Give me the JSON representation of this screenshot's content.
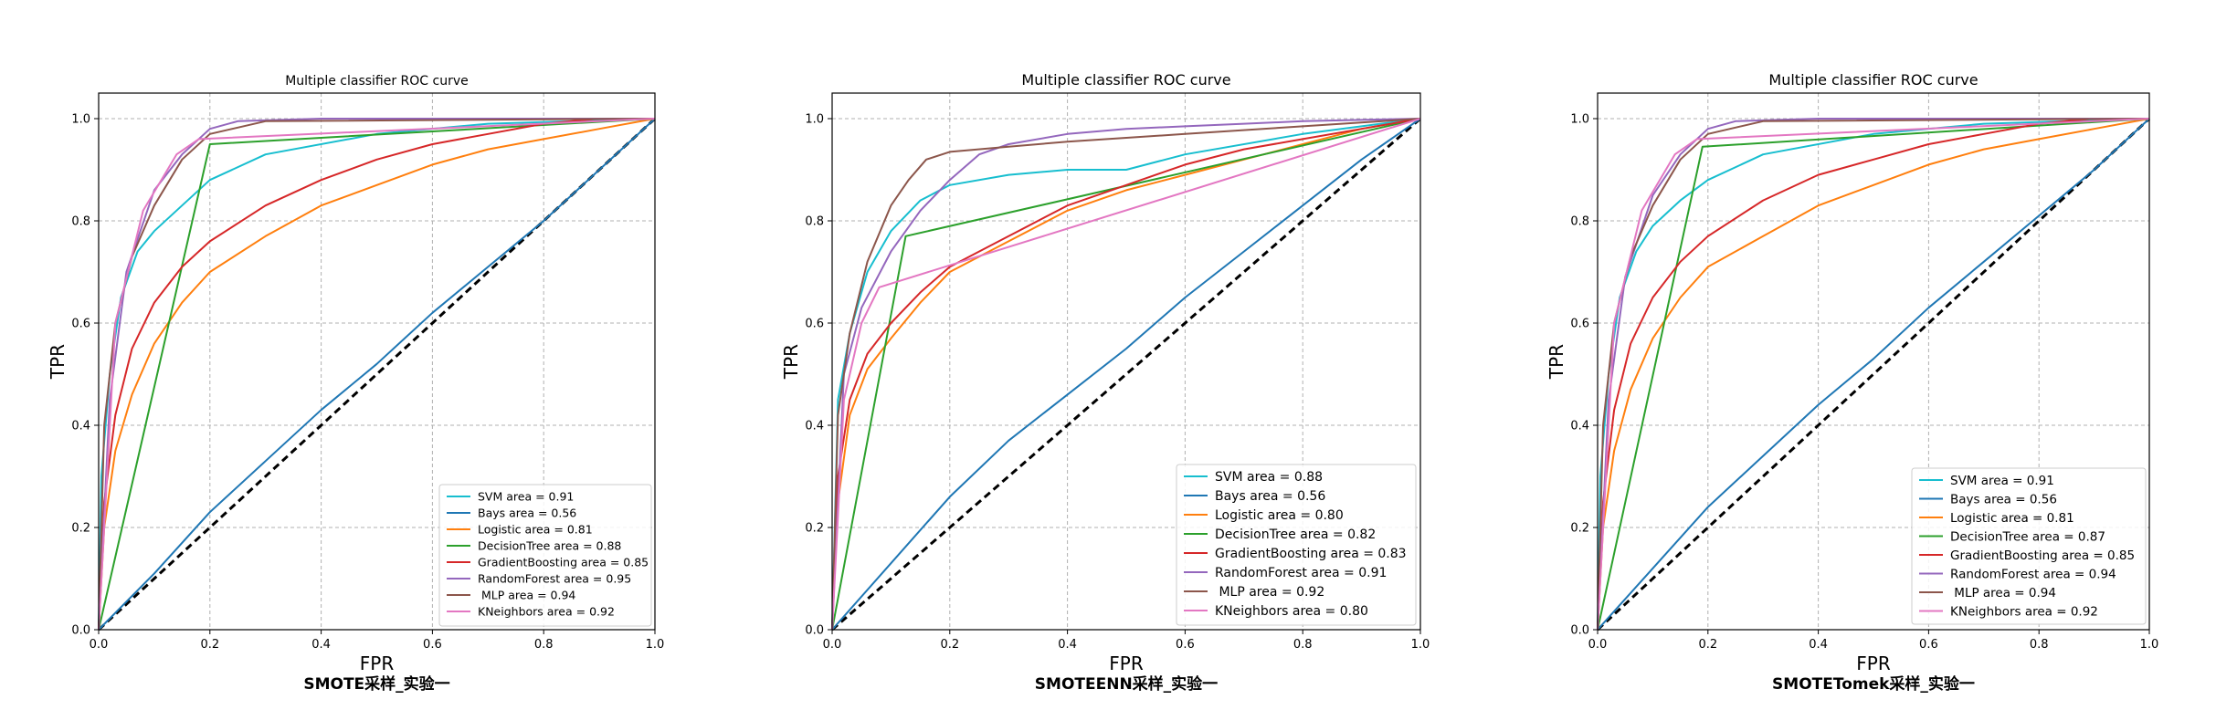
{
  "colors": {
    "SVM": "#17becf",
    "Bays": "#1f77b4",
    "Logistic": "#ff7f0e",
    "DecisionTree": "#2ca02c",
    "GradientBoosting": "#d62728",
    "RandomForest": "#9467bd",
    "MLP": "#8c564b",
    "KNeighbors": "#e377c2",
    "diagonal": "#000000",
    "grid": "#b0b0b0"
  },
  "chart_data": [
    {
      "type": "line",
      "title": "Multiple classifier ROC curve",
      "xlabel": "FPR",
      "ylabel": "TPR",
      "caption": "SMOTE采样_实验一",
      "xlim": [
        0,
        1
      ],
      "ylim": [
        0,
        1.05
      ],
      "xticks": [
        "0.0",
        "0.2",
        "0.4",
        "0.6",
        "0.8",
        "1.0"
      ],
      "yticks": [
        "0.0",
        "0.2",
        "0.4",
        "0.6",
        "0.8",
        "1.0"
      ],
      "grid": true,
      "legend_position": "lower right",
      "series": [
        {
          "key": "SVM",
          "name": "SVM area = 0.91",
          "x": [
            0,
            0.005,
            0.02,
            0.04,
            0.07,
            0.1,
            0.15,
            0.2,
            0.3,
            0.5,
            0.7,
            1.0
          ],
          "y": [
            0,
            0.3,
            0.5,
            0.65,
            0.74,
            0.78,
            0.83,
            0.88,
            0.93,
            0.97,
            0.99,
            1.0
          ]
        },
        {
          "key": "Bays",
          "name": "Bays area = 0.56",
          "x": [
            0,
            0.1,
            0.2,
            0.3,
            0.4,
            0.5,
            0.6,
            0.7,
            0.8,
            0.9,
            1.0
          ],
          "y": [
            0,
            0.11,
            0.23,
            0.33,
            0.43,
            0.52,
            0.62,
            0.71,
            0.8,
            0.9,
            1.0
          ]
        },
        {
          "key": "Logistic",
          "name": "Logistic area = 0.81",
          "x": [
            0,
            0.01,
            0.03,
            0.06,
            0.1,
            0.15,
            0.2,
            0.3,
            0.4,
            0.5,
            0.6,
            0.7,
            0.8,
            0.9,
            1.0
          ],
          "y": [
            0,
            0.2,
            0.35,
            0.46,
            0.56,
            0.64,
            0.7,
            0.77,
            0.83,
            0.87,
            0.91,
            0.94,
            0.96,
            0.98,
            1.0
          ]
        },
        {
          "key": "DecisionTree",
          "name": "DecisionTree area = 0.88",
          "x": [
            0,
            0.2,
            1.0
          ],
          "y": [
            0,
            0.95,
            1.0
          ]
        },
        {
          "key": "GradientBoosting",
          "name": "GradientBoosting area = 0.85",
          "x": [
            0,
            0.01,
            0.03,
            0.06,
            0.1,
            0.15,
            0.2,
            0.3,
            0.4,
            0.5,
            0.6,
            0.7,
            0.8,
            0.9,
            1.0
          ],
          "y": [
            0,
            0.25,
            0.42,
            0.55,
            0.64,
            0.71,
            0.76,
            0.83,
            0.88,
            0.92,
            0.95,
            0.97,
            0.99,
            1.0,
            1.0
          ]
        },
        {
          "key": "RandomForest",
          "name": "RandomForest area = 0.95",
          "x": [
            0,
            0.02,
            0.05,
            0.1,
            0.15,
            0.2,
            0.25,
            0.4,
            1.0
          ],
          "y": [
            0,
            0.45,
            0.7,
            0.86,
            0.93,
            0.98,
            0.995,
            1.0,
            1.0
          ]
        },
        {
          "key": "MLP",
          "name": " MLP area = 0.94",
          "x": [
            0,
            0.01,
            0.03,
            0.06,
            0.1,
            0.15,
            0.2,
            0.3,
            1.0
          ],
          "y": [
            0,
            0.4,
            0.6,
            0.73,
            0.83,
            0.92,
            0.97,
            0.995,
            1.0
          ]
        },
        {
          "key": "KNeighbors",
          "name": "KNeighbors area = 0.92",
          "x": [
            0,
            0.03,
            0.08,
            0.14,
            0.18,
            1.0
          ],
          "y": [
            0,
            0.6,
            0.82,
            0.93,
            0.96,
            1.0
          ]
        }
      ]
    },
    {
      "type": "line",
      "title": "Multiple classifier ROC curve",
      "xlabel": "FPR",
      "ylabel": "TPR",
      "caption": "SMOTEENN采样_实验一",
      "xlim": [
        0,
        1
      ],
      "ylim": [
        0,
        1.05
      ],
      "xticks": [
        "0.0",
        "0.2",
        "0.4",
        "0.6",
        "0.8",
        "1.0"
      ],
      "yticks": [
        "0.0",
        "0.2",
        "0.4",
        "0.6",
        "0.8",
        "1.0"
      ],
      "grid": true,
      "legend_position": "lower right",
      "series": [
        {
          "key": "SVM",
          "name": "SVM area = 0.88",
          "x": [
            0,
            0.01,
            0.03,
            0.06,
            0.1,
            0.15,
            0.2,
            0.3,
            0.4,
            0.5,
            0.6,
            0.8,
            1.0
          ],
          "y": [
            0,
            0.45,
            0.58,
            0.7,
            0.78,
            0.84,
            0.87,
            0.89,
            0.9,
            0.9,
            0.93,
            0.97,
            1.0
          ]
        },
        {
          "key": "Bays",
          "name": "Bays area = 0.56",
          "x": [
            0,
            0.1,
            0.2,
            0.3,
            0.4,
            0.5,
            0.6,
            0.7,
            0.8,
            0.9,
            1.0
          ],
          "y": [
            0,
            0.13,
            0.26,
            0.37,
            0.46,
            0.55,
            0.65,
            0.74,
            0.83,
            0.92,
            1.0
          ]
        },
        {
          "key": "Logistic",
          "name": "Logistic area = 0.80",
          "x": [
            0,
            0.01,
            0.03,
            0.06,
            0.1,
            0.15,
            0.2,
            0.3,
            0.4,
            0.5,
            0.6,
            0.7,
            0.8,
            0.9,
            1.0
          ],
          "y": [
            0,
            0.25,
            0.42,
            0.51,
            0.57,
            0.64,
            0.7,
            0.76,
            0.82,
            0.86,
            0.89,
            0.92,
            0.95,
            0.98,
            1.0
          ]
        },
        {
          "key": "DecisionTree",
          "name": "DecisionTree area = 0.82",
          "x": [
            0,
            0.125,
            1.0
          ],
          "y": [
            0,
            0.77,
            1.0
          ]
        },
        {
          "key": "GradientBoosting",
          "name": "GradientBoosting area = 0.83",
          "x": [
            0,
            0.01,
            0.03,
            0.06,
            0.1,
            0.15,
            0.2,
            0.3,
            0.4,
            0.5,
            0.6,
            0.7,
            0.8,
            0.9,
            1.0
          ],
          "y": [
            0,
            0.3,
            0.45,
            0.54,
            0.6,
            0.66,
            0.71,
            0.77,
            0.83,
            0.87,
            0.91,
            0.94,
            0.96,
            0.98,
            1.0
          ]
        },
        {
          "key": "RandomForest",
          "name": "RandomForest area = 0.91",
          "x": [
            0,
            0.02,
            0.05,
            0.1,
            0.15,
            0.2,
            0.25,
            0.3,
            0.4,
            0.5,
            0.6,
            0.7,
            0.8,
            1.0
          ],
          "y": [
            0,
            0.5,
            0.63,
            0.74,
            0.82,
            0.88,
            0.93,
            0.95,
            0.97,
            0.98,
            0.985,
            0.99,
            0.995,
            1.0
          ]
        },
        {
          "key": "MLP",
          "name": " MLP area = 0.92",
          "x": [
            0,
            0.01,
            0.03,
            0.06,
            0.1,
            0.13,
            0.16,
            0.2,
            0.3,
            0.4,
            0.6,
            0.8,
            1.0
          ],
          "y": [
            0,
            0.42,
            0.58,
            0.72,
            0.83,
            0.88,
            0.92,
            0.935,
            0.945,
            0.955,
            0.97,
            0.985,
            1.0
          ]
        },
        {
          "key": "KNeighbors",
          "name": "KNeighbors area = 0.80",
          "x": [
            0,
            0.02,
            0.05,
            0.08,
            1.0
          ],
          "y": [
            0,
            0.45,
            0.6,
            0.67,
            1.0
          ]
        }
      ]
    },
    {
      "type": "line",
      "title": "Multiple classifier ROC curve",
      "xlabel": "FPR",
      "ylabel": "TPR",
      "caption": "SMOTETomek采样_实验一",
      "xlim": [
        0,
        1
      ],
      "ylim": [
        0,
        1.05
      ],
      "xticks": [
        "0.0",
        "0.2",
        "0.4",
        "0.6",
        "0.8",
        "1.0"
      ],
      "yticks": [
        "0.0",
        "0.2",
        "0.4",
        "0.6",
        "0.8",
        "1.0"
      ],
      "grid": true,
      "legend_position": "lower right",
      "series": [
        {
          "key": "SVM",
          "name": "SVM area = 0.91",
          "x": [
            0,
            0.005,
            0.02,
            0.04,
            0.07,
            0.1,
            0.15,
            0.2,
            0.3,
            0.5,
            0.7,
            1.0
          ],
          "y": [
            0,
            0.3,
            0.5,
            0.65,
            0.74,
            0.79,
            0.84,
            0.88,
            0.93,
            0.97,
            0.99,
            1.0
          ]
        },
        {
          "key": "Bays",
          "name": "Bays area = 0.56",
          "x": [
            0,
            0.1,
            0.2,
            0.3,
            0.4,
            0.5,
            0.6,
            0.7,
            0.8,
            0.9,
            1.0
          ],
          "y": [
            0,
            0.12,
            0.24,
            0.34,
            0.44,
            0.53,
            0.63,
            0.72,
            0.81,
            0.9,
            1.0
          ]
        },
        {
          "key": "Logistic",
          "name": "Logistic area = 0.81",
          "x": [
            0,
            0.01,
            0.03,
            0.06,
            0.1,
            0.15,
            0.2,
            0.3,
            0.4,
            0.5,
            0.6,
            0.7,
            0.8,
            0.9,
            1.0
          ],
          "y": [
            0,
            0.2,
            0.35,
            0.47,
            0.57,
            0.65,
            0.71,
            0.77,
            0.83,
            0.87,
            0.91,
            0.94,
            0.96,
            0.98,
            1.0
          ]
        },
        {
          "key": "DecisionTree",
          "name": "DecisionTree area = 0.87",
          "x": [
            0,
            0.19,
            1.0
          ],
          "y": [
            0,
            0.945,
            1.0
          ]
        },
        {
          "key": "GradientBoosting",
          "name": "GradientBoosting area = 0.85",
          "x": [
            0,
            0.01,
            0.03,
            0.06,
            0.1,
            0.15,
            0.2,
            0.3,
            0.4,
            0.5,
            0.6,
            0.7,
            0.8,
            0.9,
            1.0
          ],
          "y": [
            0,
            0.25,
            0.43,
            0.56,
            0.65,
            0.72,
            0.77,
            0.84,
            0.89,
            0.92,
            0.95,
            0.97,
            0.99,
            1.0,
            1.0
          ]
        },
        {
          "key": "RandomForest",
          "name": "RandomForest area = 0.94",
          "x": [
            0,
            0.02,
            0.05,
            0.1,
            0.15,
            0.2,
            0.25,
            0.4,
            1.0
          ],
          "y": [
            0,
            0.45,
            0.69,
            0.85,
            0.93,
            0.98,
            0.995,
            1.0,
            1.0
          ]
        },
        {
          "key": "MLP",
          "name": " MLP area = 0.94",
          "x": [
            0,
            0.01,
            0.03,
            0.06,
            0.1,
            0.15,
            0.2,
            0.3,
            1.0
          ],
          "y": [
            0,
            0.4,
            0.6,
            0.73,
            0.83,
            0.92,
            0.97,
            0.995,
            1.0
          ]
        },
        {
          "key": "KNeighbors",
          "name": "KNeighbors area = 0.92",
          "x": [
            0,
            0.03,
            0.08,
            0.14,
            0.18,
            1.0
          ],
          "y": [
            0,
            0.6,
            0.82,
            0.93,
            0.96,
            1.0
          ]
        }
      ]
    }
  ]
}
